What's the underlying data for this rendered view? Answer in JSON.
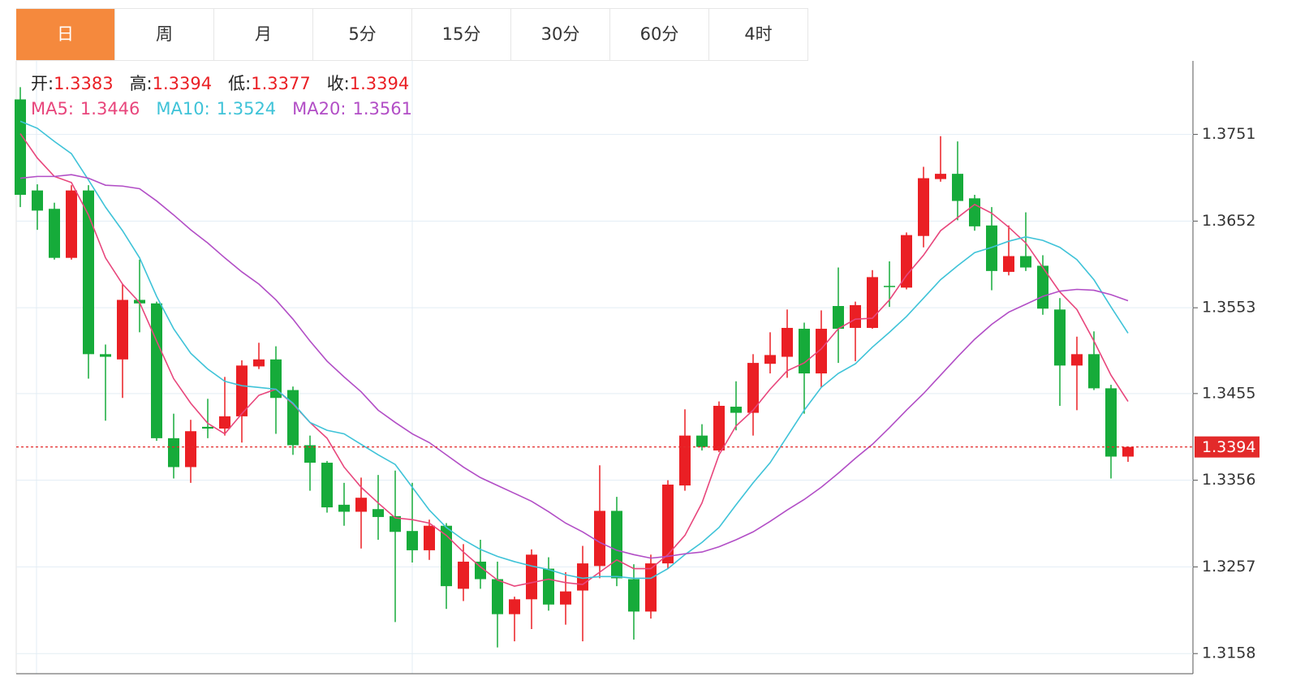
{
  "tabs": {
    "items": [
      "日",
      "周",
      "月",
      "5分",
      "15分",
      "30分",
      "60分",
      "4时"
    ],
    "active": 0
  },
  "chart_data": {
    "type": "candlestick",
    "open": [
      1.3791,
      1.3687,
      1.3666,
      1.361,
      1.3687,
      1.35,
      1.3494,
      1.3562,
      1.3558,
      1.3404,
      1.3371,
      1.3417,
      1.3415,
      1.3429,
      1.3486,
      1.3494,
      1.3459,
      1.3396,
      1.3376,
      1.3328,
      1.332,
      1.3323,
      1.3315,
      1.3298,
      1.3276,
      1.3304,
      1.3232,
      1.3263,
      1.3243,
      1.3203,
      1.322,
      1.3255,
      1.3214,
      1.323,
      1.3258,
      1.3321,
      1.3243,
      1.3206,
      1.3261,
      1.335,
      1.3407,
      1.339,
      1.344,
      1.3433,
      1.3489,
      1.3497,
      1.3529,
      1.3478,
      1.3555,
      1.353,
      1.353,
      1.3578,
      1.3576,
      1.3635,
      1.37,
      1.3706,
      1.3678,
      1.3647,
      1.3594,
      1.3612,
      1.3601,
      1.3551,
      1.3487,
      1.35,
      1.3461,
      1.3383
    ],
    "high": [
      1.3805,
      1.3694,
      1.3673,
      1.3693,
      1.3693,
      1.3511,
      1.358,
      1.3608,
      1.356,
      1.3432,
      1.3425,
      1.3449,
      1.3474,
      1.3493,
      1.3513,
      1.3509,
      1.3463,
      1.3407,
      1.3378,
      1.3353,
      1.3359,
      1.3362,
      1.3367,
      1.3353,
      1.3311,
      1.3307,
      1.3283,
      1.3288,
      1.3263,
      1.3223,
      1.3277,
      1.3268,
      1.3251,
      1.3281,
      1.3373,
      1.3337,
      1.326,
      1.3271,
      1.3356,
      1.3437,
      1.342,
      1.3446,
      1.3469,
      1.35,
      1.3525,
      1.3551,
      1.3536,
      1.355,
      1.3599,
      1.356,
      1.3596,
      1.3606,
      1.3639,
      1.3714,
      1.3749,
      1.3743,
      1.3682,
      1.3668,
      1.3647,
      1.3662,
      1.3613,
      1.3564,
      1.352,
      1.3526,
      1.3465,
      1.3394
    ],
    "low": [
      1.3668,
      1.3642,
      1.3608,
      1.3608,
      1.3472,
      1.3424,
      1.345,
      1.3525,
      1.3401,
      1.3358,
      1.3353,
      1.3404,
      1.3407,
      1.3399,
      1.3483,
      1.3409,
      1.3385,
      1.3344,
      1.3319,
      1.3304,
      1.3278,
      1.3288,
      1.3194,
      1.3262,
      1.3265,
      1.3209,
      1.3218,
      1.3232,
      1.3165,
      1.3172,
      1.3186,
      1.3207,
      1.3191,
      1.3172,
      1.3244,
      1.3235,
      1.3174,
      1.3198,
      1.3255,
      1.3344,
      1.339,
      1.3388,
      1.3413,
      1.3407,
      1.3478,
      1.3473,
      1.3432,
      1.3462,
      1.349,
      1.3492,
      1.3529,
      1.3554,
      1.3574,
      1.3622,
      1.3697,
      1.3653,
      1.3641,
      1.3573,
      1.359,
      1.3595,
      1.3545,
      1.3441,
      1.3436,
      1.3459,
      1.3358,
      1.3377
    ],
    "close": [
      1.3682,
      1.3664,
      1.361,
      1.3687,
      1.35,
      1.3497,
      1.3562,
      1.3558,
      1.3404,
      1.3371,
      1.3412,
      1.3415,
      1.3429,
      1.3487,
      1.3494,
      1.345,
      1.3396,
      1.3376,
      1.3325,
      1.332,
      1.3336,
      1.3314,
      1.3297,
      1.3276,
      1.3304,
      1.3235,
      1.3263,
      1.3243,
      1.3203,
      1.322,
      1.3271,
      1.3214,
      1.3229,
      1.3261,
      1.3321,
      1.3244,
      1.3206,
      1.3261,
      1.3351,
      1.3407,
      1.3394,
      1.3441,
      1.3433,
      1.349,
      1.3499,
      1.353,
      1.3478,
      1.3529,
      1.3529,
      1.3556,
      1.3588,
      1.3577,
      1.3636,
      1.3701,
      1.3706,
      1.3675,
      1.3646,
      1.3595,
      1.3612,
      1.3599,
      1.3552,
      1.3487,
      1.35,
      1.3461,
      1.3383,
      1.3394
    ],
    "up_color": "#ea1f24",
    "down_color": "#16ab3a",
    "price_line_color": "#e32a2a",
    "ohlc_labels": [
      "开:",
      "高:",
      "低:",
      "收:"
    ],
    "series": [
      {
        "name": "MA5:",
        "color": "#e8467c",
        "values": [
          1.3752,
          1.3724,
          1.3703,
          1.3696,
          1.3659,
          1.361,
          1.358,
          1.3559,
          1.3515,
          1.3472,
          1.3444,
          1.3421,
          1.3409,
          1.3432,
          1.3453,
          1.346,
          1.3443,
          1.3422,
          1.3404,
          1.3371,
          1.3348,
          1.333,
          1.3313,
          1.3311,
          1.3307,
          1.3293,
          1.3274,
          1.3257,
          1.3242,
          1.3235,
          1.3239,
          1.3243,
          1.3239,
          1.3237,
          1.3251,
          1.3265,
          1.3255,
          1.3255,
          1.3271,
          1.3293,
          1.333,
          1.3385,
          1.3418,
          1.3436,
          1.346,
          1.3481,
          1.349,
          1.3506,
          1.3529,
          1.354,
          1.3541,
          1.3562,
          1.359,
          1.3613,
          1.3641,
          1.3656,
          1.3671,
          1.3661,
          1.3645,
          1.3627,
          1.3599,
          1.3571,
          1.3551,
          1.3515,
          1.3476,
          1.3446
        ]
      },
      {
        "name": "MA10:",
        "color": "#3fc3d8",
        "values": [
          1.3766,
          1.3758,
          1.3743,
          1.3729,
          1.3699,
          1.3668,
          1.3641,
          1.361,
          1.3566,
          1.3529,
          1.3501,
          1.3483,
          1.3469,
          1.3464,
          1.3462,
          1.346,
          1.3444,
          1.3422,
          1.3413,
          1.3409,
          1.3397,
          1.3385,
          1.3374,
          1.3348,
          1.3322,
          1.3302,
          1.3288,
          1.3277,
          1.3269,
          1.3263,
          1.3258,
          1.3254,
          1.3248,
          1.3244,
          1.3246,
          1.3246,
          1.3244,
          1.3244,
          1.3255,
          1.3271,
          1.3285,
          1.3302,
          1.3328,
          1.3353,
          1.3376,
          1.3406,
          1.3436,
          1.3462,
          1.3478,
          1.3489,
          1.3508,
          1.3525,
          1.3543,
          1.3564,
          1.3585,
          1.3601,
          1.3616,
          1.3622,
          1.3629,
          1.3634,
          1.363,
          1.3622,
          1.3608,
          1.3585,
          1.3554,
          1.3524
        ]
      },
      {
        "name": "MA20:",
        "color": "#b24ec6",
        "values": [
          1.3701,
          1.3703,
          1.3703,
          1.3705,
          1.3701,
          1.3693,
          1.3692,
          1.3689,
          1.3675,
          1.3659,
          1.3642,
          1.3627,
          1.361,
          1.3594,
          1.358,
          1.3562,
          1.354,
          1.3515,
          1.3492,
          1.3474,
          1.3457,
          1.3436,
          1.3422,
          1.3409,
          1.3399,
          1.3385,
          1.3371,
          1.3359,
          1.335,
          1.3341,
          1.3332,
          1.332,
          1.3307,
          1.3297,
          1.3285,
          1.3276,
          1.3271,
          1.3267,
          1.3269,
          1.3272,
          1.3274,
          1.328,
          1.3288,
          1.3297,
          1.3309,
          1.3322,
          1.3334,
          1.3348,
          1.3364,
          1.3381,
          1.3397,
          1.3416,
          1.3436,
          1.3455,
          1.3476,
          1.3497,
          1.3517,
          1.3534,
          1.3548,
          1.3557,
          1.3566,
          1.3572,
          1.3574,
          1.3573,
          1.3568,
          1.3561
        ]
      }
    ],
    "ylim": [
      1.3135,
      1.3835
    ],
    "yticks": [
      1.3751,
      1.3652,
      1.3553,
      1.3455,
      1.3356,
      1.3257,
      1.3158
    ],
    "grid": true
  }
}
